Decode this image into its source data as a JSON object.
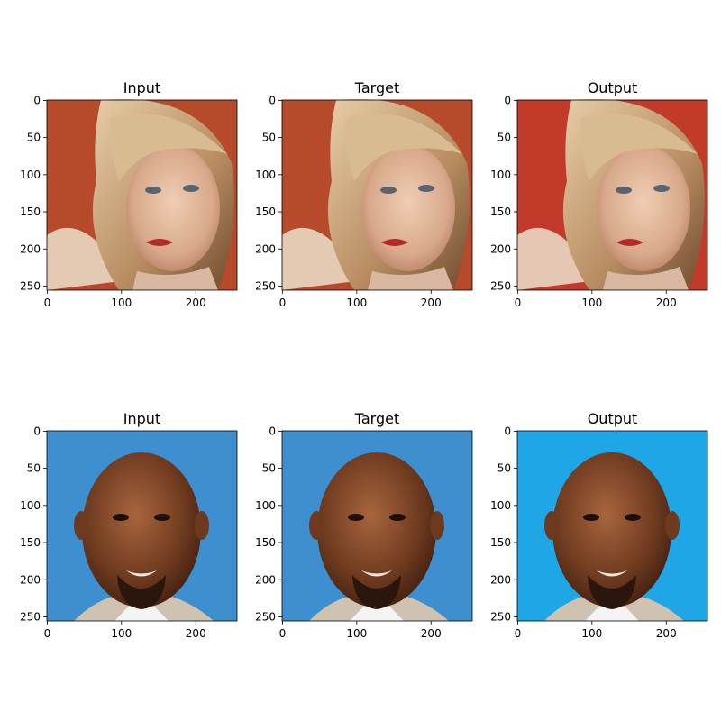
{
  "figure": {
    "panels": [
      {
        "title": "Input",
        "tint": "#b84a2c",
        "xticks": [
          "0",
          "100",
          "200"
        ],
        "yticks": [
          "0",
          "50",
          "100",
          "150",
          "200",
          "250"
        ]
      },
      {
        "title": "Target",
        "tint": "#b84a2c",
        "xticks": [
          "0",
          "100",
          "200"
        ],
        "yticks": [
          "0",
          "50",
          "100",
          "150",
          "200",
          "250"
        ]
      },
      {
        "title": "Output",
        "tint": "#c23a2a",
        "xticks": [
          "0",
          "100",
          "200"
        ],
        "yticks": [
          "0",
          "50",
          "100",
          "150",
          "200",
          "250"
        ]
      },
      {
        "title": "Input",
        "tint": "#3d8fd0",
        "xticks": [
          "0",
          "100",
          "200"
        ],
        "yticks": [
          "0",
          "50",
          "100",
          "150",
          "200",
          "250"
        ]
      },
      {
        "title": "Target",
        "tint": "#3d8fd0",
        "xticks": [
          "0",
          "100",
          "200"
        ],
        "yticks": [
          "0",
          "50",
          "100",
          "150",
          "200",
          "250"
        ]
      },
      {
        "title": "Output",
        "tint": "#1ea6e6",
        "xticks": [
          "0",
          "100",
          "200"
        ],
        "yticks": [
          "0",
          "50",
          "100",
          "150",
          "200",
          "250"
        ]
      }
    ],
    "tick_values_x": [
      0,
      100,
      200
    ],
    "tick_values_y": [
      0,
      50,
      100,
      150,
      200,
      250
    ],
    "image_extent": [
      256,
      256
    ]
  }
}
